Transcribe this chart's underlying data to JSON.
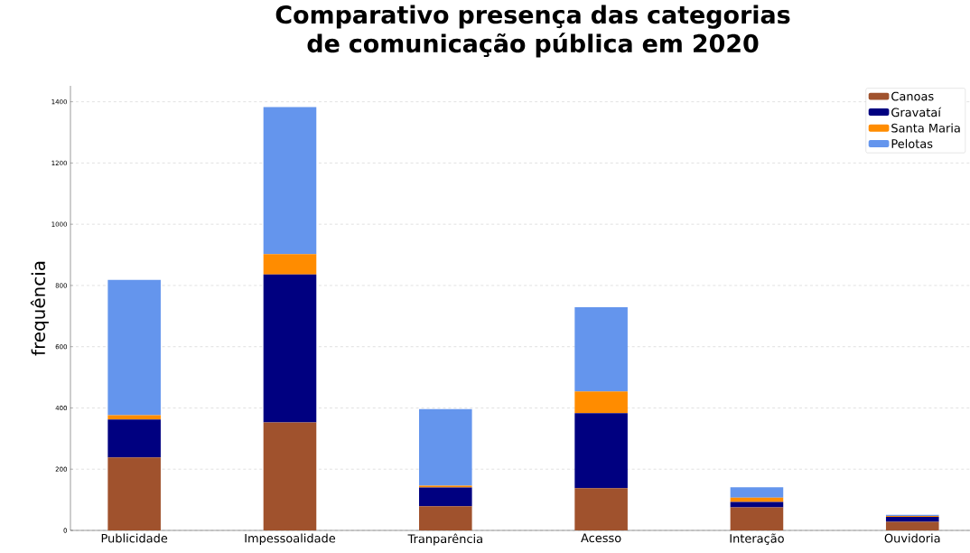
{
  "chart_data": {
    "type": "bar",
    "stacked": true,
    "title": "Comparativo presença das categorias de comunicação pública em 2020",
    "ylabel": "frequência",
    "categories": [
      "Publicidade",
      "Impessoalidade",
      "Tranparência",
      "Acesso",
      "Interação",
      "Ouvidoria"
    ],
    "series": [
      {
        "name": "Canoas",
        "color": "#a0522d",
        "values": [
          238,
          353,
          79,
          138,
          75,
          28
        ]
      },
      {
        "name": "Gravataí",
        "color": "#000080",
        "values": [
          124,
          483,
          61,
          245,
          18,
          16
        ]
      },
      {
        "name": "Santa Maria",
        "color": "#ff8c00",
        "values": [
          14,
          66,
          6,
          71,
          14,
          3
        ]
      },
      {
        "name": "Pelotas",
        "color": "#6495ed",
        "values": [
          442,
          481,
          250,
          275,
          34,
          4
        ]
      }
    ],
    "ylim": [
      0,
      1452
    ],
    "yticks": [
      0,
      200,
      400,
      600,
      800,
      1000,
      1200,
      1400
    ],
    "grid": "y",
    "legend": "top right"
  }
}
